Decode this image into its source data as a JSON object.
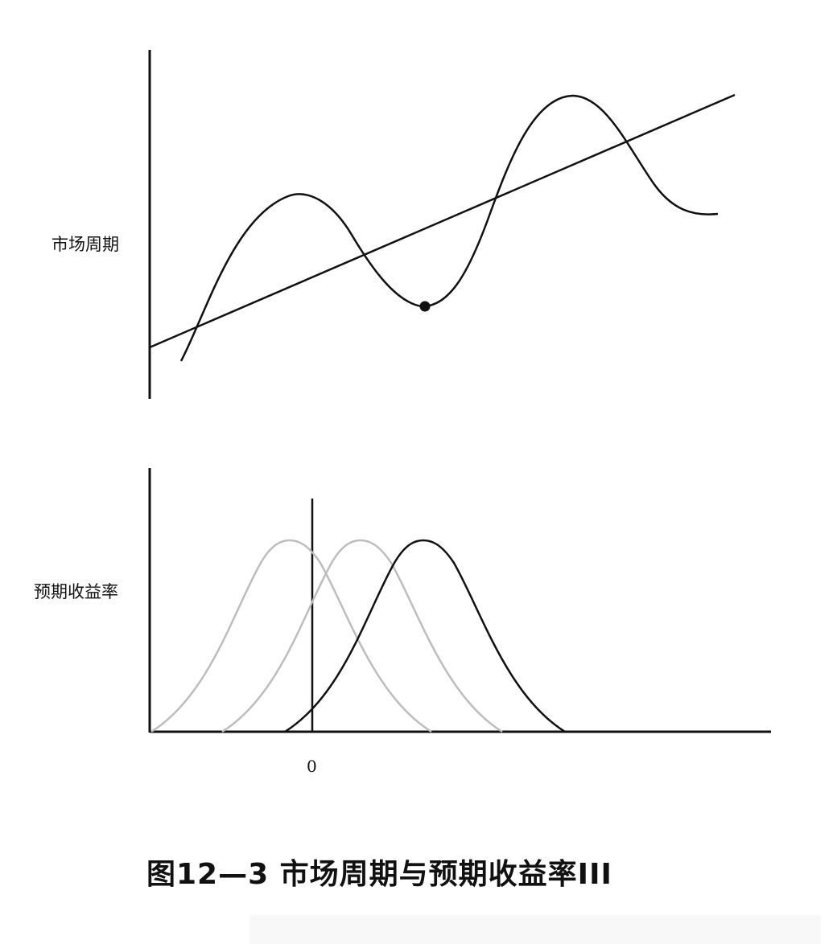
{
  "panels": {
    "top": {
      "ylabel": "市场周期",
      "marker": "cycle-low-point"
    },
    "bottom": {
      "ylabel": "预期收益率",
      "zero_label": "0",
      "distributions": [
        {
          "color": "#bdbdbd",
          "relative_peak_position": "left of zero"
        },
        {
          "color": "#bdbdbd",
          "relative_peak_position": "right of zero"
        },
        {
          "color": "#111111",
          "relative_peak_position": "farthest right"
        }
      ]
    }
  },
  "caption": "图12—3 市场周期与预期收益率III",
  "colors": {
    "ink": "#111111",
    "faded": "#bdbdbd",
    "background": "#ffffff"
  }
}
